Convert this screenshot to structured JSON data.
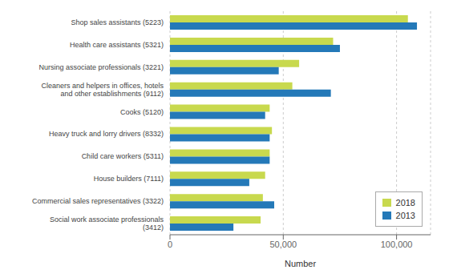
{
  "chart_data": {
    "type": "bar",
    "orientation": "horizontal",
    "categories": [
      "Shop sales assistants (5223)",
      "Health care assistants (5321)",
      "Nursing associate professionals (3221)",
      "Cleaners and helpers in offices, hotels\nand other establishments (9112)",
      "Cooks (5120)",
      "Heavy truck and lorry drivers (8332)",
      "Child care workers (5311)",
      "House builders (7111)",
      "Commercial sales representatives (3322)",
      "Social work associate professionals\n(3412)"
    ],
    "series": [
      {
        "name": "2018",
        "color": "#c8d94e",
        "values": [
          105000,
          72000,
          57000,
          54000,
          44000,
          45000,
          44000,
          42000,
          41000,
          40000
        ]
      },
      {
        "name": "2013",
        "color": "#2479b8",
        "values": [
          109000,
          75000,
          48000,
          71000,
          42000,
          44000,
          44000,
          35000,
          46000,
          28000
        ]
      }
    ],
    "xlim": [
      0,
      115000
    ],
    "xticks": [
      0,
      {
        "value": 50000,
        "label": "50,000"
      },
      {
        "value": 100000,
        "label": "100,000"
      }
    ],
    "xlabel": "Number",
    "grid": true,
    "legend": "lower right"
  }
}
